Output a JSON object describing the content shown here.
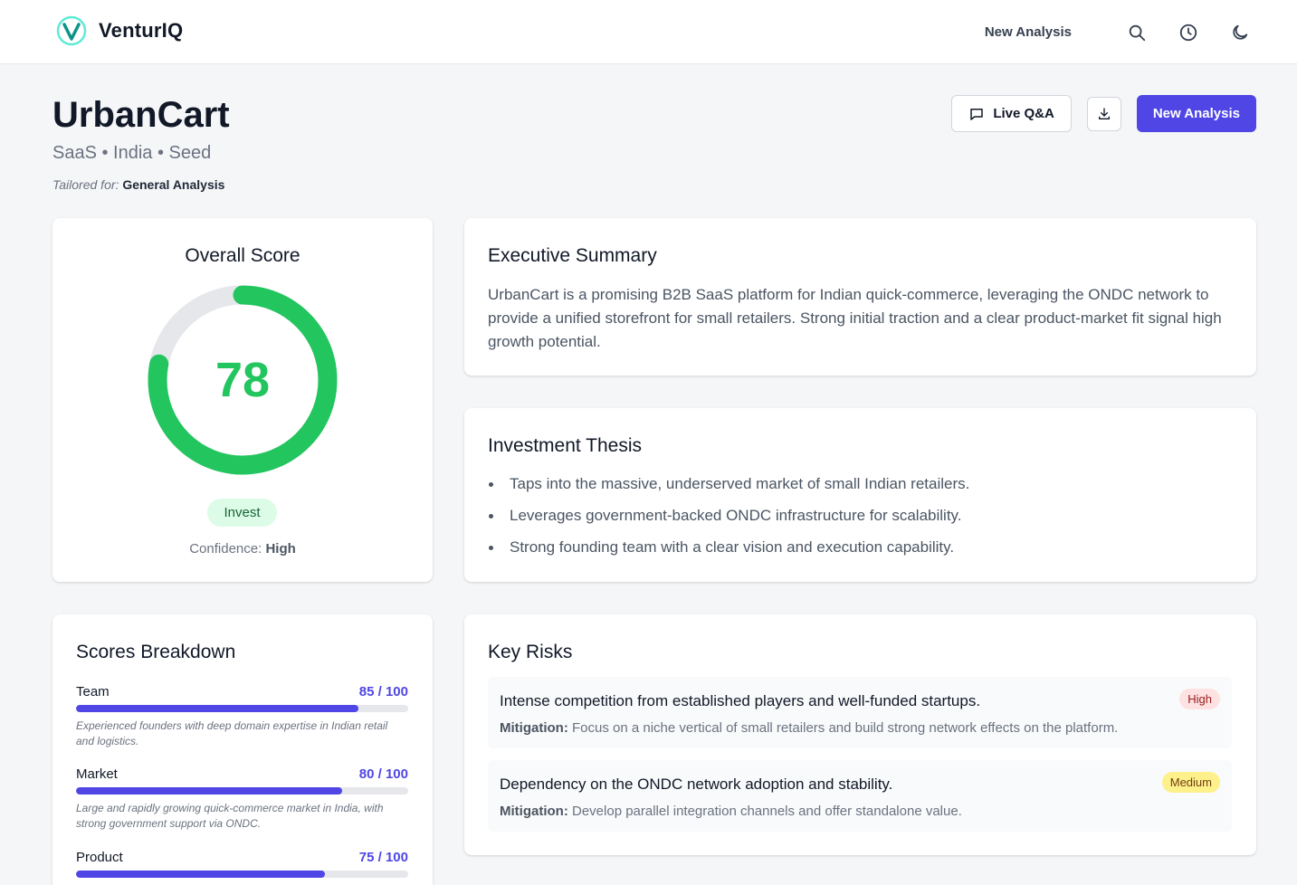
{
  "app": {
    "name": "VenturIQ",
    "nav": {
      "new_analysis": "New Analysis"
    },
    "icons": [
      "logo-v-icon",
      "search-icon",
      "history-clock-icon",
      "moon-icon"
    ]
  },
  "company": {
    "name": "UrbanCart",
    "meta": "SaaS • India • Seed",
    "tailored_prefix": "Tailored for:",
    "tailored_value": "General Analysis"
  },
  "actions": {
    "live_qa": "Live Q&A",
    "new_analysis": "New Analysis"
  },
  "overall": {
    "title": "Overall Score",
    "score": 78,
    "score_text": "78",
    "max": 100,
    "verdict": "Invest",
    "confidence_label": "Confidence:",
    "confidence_value": "High",
    "color": "#22c55e",
    "track_color": "#e5e7eb"
  },
  "executive_summary": {
    "title": "Executive Summary",
    "text": "UrbanCart is a promising B2B SaaS platform for Indian quick-commerce, leveraging the ONDC network to provide a unified storefront for small retailers. Strong initial traction and a clear product-market fit signal high growth potential."
  },
  "investment_thesis": {
    "title": "Investment Thesis",
    "points": [
      "Taps into the massive, underserved market of small Indian retailers.",
      "Leverages government-backed ONDC infrastructure for scalability.",
      "Strong founding team with a clear vision and execution capability."
    ]
  },
  "scores_breakdown": {
    "title": "Scores Breakdown",
    "items": [
      {
        "label": "Team",
        "value": "85 / 100",
        "score": 85,
        "desc": "Experienced founders with deep domain expertise in Indian retail and logistics."
      },
      {
        "label": "Market",
        "value": "80 / 100",
        "score": 80,
        "desc": "Large and rapidly growing quick-commerce market in India, with strong government support via ONDC."
      },
      {
        "label": "Product",
        "value": "75 / 100",
        "score": 75,
        "desc": ""
      }
    ]
  },
  "key_risks": {
    "title": "Key Risks",
    "mitigation_label": "Mitigation:",
    "items": [
      {
        "title": "Intense competition from established players and well-funded startups.",
        "severity": "High",
        "mitigation": "Focus on a niche vertical of small retailers and build strong network effects on the platform."
      },
      {
        "title": "Dependency on the ONDC network adoption and stability.",
        "severity": "Medium",
        "mitigation": "Develop parallel integration channels and offer standalone value."
      }
    ]
  },
  "colors": {
    "accent": "#4f46e5",
    "success": "#22c55e",
    "high": "#fee2e2",
    "medium": "#fef08a"
  }
}
